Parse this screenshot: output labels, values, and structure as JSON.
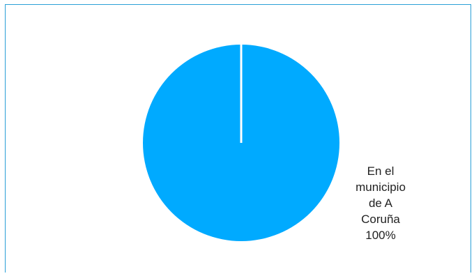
{
  "chart_data": {
    "type": "pie",
    "categories": [
      "En el municipio de A Coruña"
    ],
    "values": [
      100
    ],
    "labels": [
      {
        "lines": [
          "En el",
          "municipio",
          "de A",
          "Coruña",
          "100%"
        ]
      }
    ],
    "colors": {
      "slice": "#00aaff",
      "separator": "#ffffff",
      "border": "#2a9fd6"
    },
    "legend": "none"
  }
}
